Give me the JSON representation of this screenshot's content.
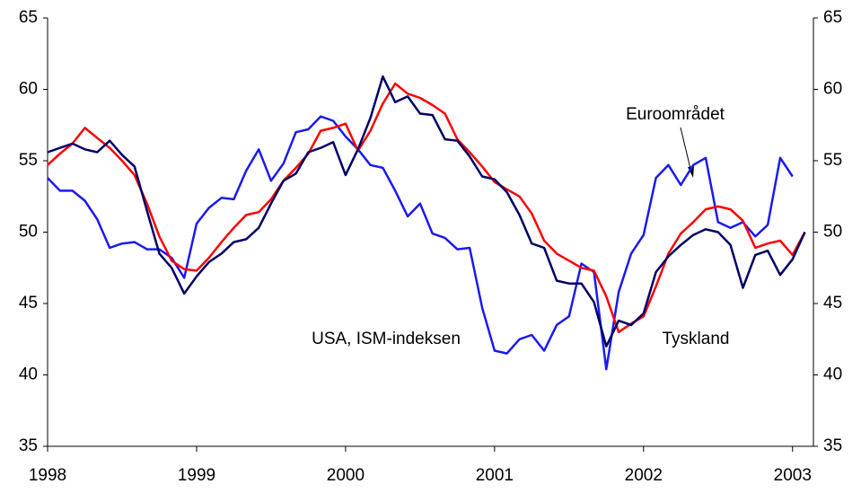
{
  "chart_data": {
    "type": "line",
    "x": [
      1998.0,
      1998.083,
      1998.167,
      1998.25,
      1998.333,
      1998.417,
      1998.5,
      1998.583,
      1998.667,
      1998.75,
      1998.833,
      1998.917,
      1999.0,
      1999.083,
      1999.167,
      1999.25,
      1999.333,
      1999.417,
      1999.5,
      1999.583,
      1999.667,
      1999.75,
      1999.833,
      1999.917,
      2000.0,
      2000.083,
      2000.167,
      2000.25,
      2000.333,
      2000.417,
      2000.5,
      2000.583,
      2000.667,
      2000.75,
      2000.833,
      2000.917,
      2001.0,
      2001.083,
      2001.167,
      2001.25,
      2001.333,
      2001.417,
      2001.5,
      2001.583,
      2001.667,
      2001.75,
      2001.833,
      2001.917,
      2002.0,
      2002.083,
      2002.167,
      2002.25,
      2002.333,
      2002.417,
      2002.5,
      2002.583,
      2002.667,
      2002.75,
      2002.833,
      2002.917,
      2003.0,
      2003.083
    ],
    "series": [
      {
        "name": "USA, ISM-indeksen",
        "color": "#1a1aee",
        "values": [
          53.8,
          52.9,
          52.9,
          52.2,
          50.9,
          48.9,
          49.2,
          49.3,
          48.8,
          48.8,
          48.2,
          46.8,
          50.6,
          51.7,
          52.4,
          52.3,
          54.3,
          55.8,
          53.6,
          54.8,
          57.0,
          57.2,
          58.1,
          57.8,
          56.7,
          55.8,
          54.7,
          54.5,
          52.9,
          51.1,
          52.0,
          49.9,
          49.6,
          48.8,
          48.9,
          44.7,
          41.7,
          41.5,
          42.5,
          42.8,
          41.7,
          43.5,
          44.1,
          47.8,
          47.2,
          40.4,
          45.8,
          48.5,
          49.8,
          53.8,
          54.7,
          53.3,
          54.7,
          55.2,
          50.7,
          50.3,
          50.7,
          49.7,
          50.5,
          55.2,
          53.9,
          null
        ]
      },
      {
        "name": "Euroområdet",
        "color": "#ff0000",
        "values": [
          54.7,
          55.5,
          56.2,
          57.3,
          56.6,
          55.9,
          55.0,
          54.0,
          52.0,
          49.7,
          48.0,
          47.4,
          47.3,
          48.2,
          49.3,
          50.3,
          51.2,
          51.4,
          52.3,
          53.6,
          54.5,
          55.5,
          57.1,
          57.3,
          57.6,
          55.7,
          57.1,
          59.0,
          60.4,
          59.7,
          59.4,
          58.9,
          58.3,
          56.5,
          55.6,
          54.6,
          53.5,
          53.0,
          52.5,
          51.3,
          49.4,
          48.5,
          48.0,
          47.5,
          47.3,
          45.5,
          43.0,
          43.6,
          44.1,
          46.2,
          48.5,
          49.9,
          50.7,
          51.6,
          51.8,
          51.6,
          50.8,
          48.9,
          49.2,
          49.4,
          48.4,
          50.0
        ]
      },
      {
        "name": "Tyskland",
        "color": "#000066",
        "values": [
          55.6,
          55.9,
          56.2,
          55.8,
          55.6,
          56.4,
          55.4,
          54.6,
          51.5,
          48.5,
          47.5,
          45.7,
          46.9,
          47.9,
          48.5,
          49.3,
          49.5,
          50.3,
          52.0,
          53.6,
          54.1,
          55.6,
          55.9,
          56.3,
          54.0,
          55.8,
          58.0,
          60.9,
          59.1,
          59.5,
          58.3,
          58.2,
          56.5,
          56.4,
          55.3,
          53.9,
          53.7,
          52.8,
          51.2,
          49.2,
          48.9,
          46.6,
          46.4,
          46.4,
          45.1,
          42.0,
          43.8,
          43.5,
          44.3,
          47.2,
          48.3,
          49.1,
          49.8,
          50.2,
          50.0,
          49.1,
          46.1,
          48.4,
          48.7,
          47.0,
          48.1,
          50.0
        ]
      }
    ],
    "xlim": [
      1998,
      2003.14
    ],
    "xticks": [
      1998,
      1999,
      2000,
      2001,
      2002,
      2003
    ],
    "ylim": [
      35,
      65
    ],
    "yticks": [
      35,
      40,
      45,
      50,
      55,
      60,
      65
    ],
    "y2lim": [
      35,
      65
    ],
    "y2ticks": [
      35,
      40,
      45,
      50,
      55,
      60,
      65
    ]
  }
}
